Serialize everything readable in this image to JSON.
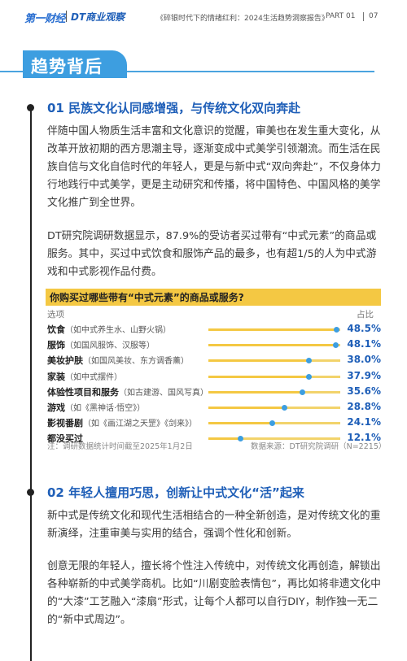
{
  "header": {
    "logo_primary": "第一财经",
    "logo_secondary": "DT商业观察",
    "report_title": "《碎银时代下的情绪红利：2024生活趋势洞察报告》",
    "part": "PART 01",
    "page_number": "07"
  },
  "banner": {
    "title": "趋势背后"
  },
  "section1": {
    "title": "01 民族文化认同感增强，与传统文化双向奔赴",
    "paragraph1": "伴随中国人物质生活丰富和文化意识的觉醒，审美也在发生重大变化，从改革开放初期的西方思潮主导，逐渐变成中式美学引领潮流。而生活在民族自信与文化自信时代的年轻人，更是与新中式“双向奔赴”，不仅身体力行地践行中式美学，更是主动研究和传播，将中国特色、中国风格的美学文化推广到全世界。",
    "paragraph2": "DT研究院调研数据显示，87.9%的受访者买过带有“中式元素”的商品或服务。其中，买过中式饮食和服饰产品的最多，也有超1/5的人为中式游戏和中式影视作品付费。"
  },
  "chart_data": {
    "type": "bar",
    "title": "你购买过哪些带有“中式元素”的商品或服务?",
    "xlabel": "选项",
    "ylabel": "占比",
    "categories": [
      {
        "main": "饮食",
        "sub": "（如中式养生水、山野火锅）"
      },
      {
        "main": "服饰",
        "sub": "（如国风服饰、汉服等）"
      },
      {
        "main": "美妆护肤",
        "sub": "（如国风美妆、东方调香薰）"
      },
      {
        "main": "家装",
        "sub": "（如中式摆件）"
      },
      {
        "main": "体验性项目和服务",
        "sub": "（如古建游、国风写真）"
      },
      {
        "main": "游戏",
        "sub": "（如《黑神话·悟空》）"
      },
      {
        "main": "影视番剧",
        "sub": "（如《画江湖之天罡》《剑来》）"
      },
      {
        "main": "都没买过",
        "sub": ""
      }
    ],
    "values": [
      48.5,
      48.1,
      38.0,
      37.9,
      35.6,
      28.8,
      24.1,
      12.1
    ],
    "value_labels": [
      "48.5%",
      "48.1%",
      "38.0%",
      "37.9%",
      "35.6%",
      "28.8%",
      "24.1%",
      "12.1%"
    ],
    "xlim": [
      0,
      50
    ],
    "note": "注：调研数据统计时间截至2025年1月2日",
    "source": "数据来源：DT研究院调研（N=2215）",
    "colors": {
      "bar": "#f4c843",
      "marker": "#3d9ee0",
      "value": "#1f5fb8"
    }
  },
  "section2": {
    "title": "02 年轻人擅用巧思，创新让中式文化“活”起来",
    "paragraph1": "新中式是传统文化和现代生活相结合的一种全新创造，是对传统文化的重新演绎，注重审美与实用的结合，强调个性化和创新。",
    "paragraph2": "创意无限的年轻人，擅长将个性注入传统中，对传统文化再创造，解锁出各种崭新的中式美学商机。比如“川剧变脸表情包”，再比如将非遗文化中的“大漆”工艺融入“漆扇”形式，让每个人都可以自行DIY，制作独一无二的“新中式周边”。"
  }
}
